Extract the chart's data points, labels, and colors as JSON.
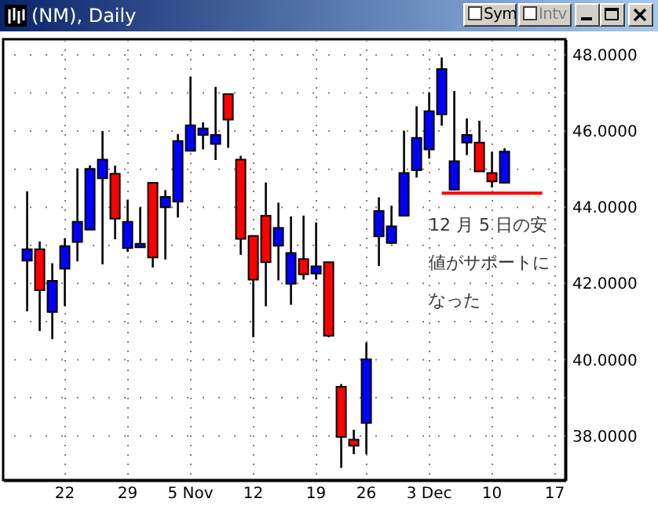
{
  "chart_data": {
    "type": "candlestick",
    "title": "(NM), Daily",
    "categories": [
      null,
      null,
      null,
      "22",
      null,
      null,
      null,
      null,
      "29",
      null,
      null,
      null,
      null,
      "5\nNov",
      null,
      null,
      null,
      null,
      "12",
      null,
      null,
      null,
      null,
      "19",
      null,
      null,
      null,
      "26",
      null,
      null,
      null,
      null,
      "3\nDec",
      null,
      null,
      null,
      null,
      "10",
      null,
      null,
      null,
      null,
      "17"
    ],
    "ohlc": [
      [
        42.6,
        44.42,
        41.27,
        42.9
      ],
      [
        42.9,
        43.1,
        40.75,
        41.82
      ],
      [
        41.25,
        42.53,
        40.54,
        42.07
      ],
      [
        42.39,
        43.18,
        41.4,
        42.98
      ],
      [
        43.09,
        45.02,
        42.58,
        43.62
      ],
      [
        43.41,
        45.1,
        43.41,
        45.01
      ],
      [
        44.76,
        46.0,
        42.5,
        45.25
      ],
      [
        44.88,
        45.09,
        43.16,
        43.7
      ],
      [
        42.93,
        44.2,
        42.83,
        43.62
      ],
      [
        42.95,
        44.0,
        42.95,
        43.04
      ],
      [
        44.64,
        44.64,
        42.42,
        42.68
      ],
      [
        44.0,
        44.45,
        42.63,
        44.27
      ],
      [
        44.15,
        45.92,
        43.73,
        45.74
      ],
      [
        45.48,
        47.43,
        45.48,
        46.15
      ],
      [
        45.9,
        46.23,
        45.52,
        46.07
      ],
      [
        45.66,
        47.16,
        45.24,
        45.9
      ],
      [
        46.97,
        46.97,
        45.56,
        46.3
      ],
      [
        45.25,
        45.35,
        42.75,
        43.17
      ],
      [
        43.25,
        43.25,
        40.59,
        42.1
      ],
      [
        43.78,
        44.65,
        41.4,
        42.56
      ],
      [
        42.99,
        44.12,
        42.08,
        43.46
      ],
      [
        41.99,
        43.76,
        41.44,
        42.8
      ],
      [
        42.64,
        43.78,
        42.1,
        42.24
      ],
      [
        42.26,
        43.6,
        42.1,
        42.45
      ],
      [
        42.56,
        42.56,
        40.59,
        40.63
      ],
      [
        39.29,
        39.36,
        37.16,
        37.97
      ],
      [
        37.9,
        38.16,
        37.52,
        37.74
      ],
      [
        38.34,
        40.45,
        37.52,
        40.01
      ],
      [
        43.24,
        44.26,
        42.46,
        43.9
      ],
      [
        43.06,
        44.04,
        43.03,
        43.5
      ],
      [
        43.78,
        46.01,
        43.78,
        44.9
      ],
      [
        44.97,
        46.65,
        44.78,
        45.82
      ],
      [
        45.52,
        47.02,
        45.28,
        46.52
      ],
      [
        46.44,
        47.93,
        46.14,
        47.63
      ],
      [
        44.46,
        47.05,
        44.46,
        45.21
      ],
      [
        45.7,
        46.33,
        45.37,
        45.9
      ],
      [
        45.7,
        46.27,
        44.94,
        44.94
      ],
      [
        44.9,
        45.46,
        44.52,
        44.68
      ],
      [
        44.64,
        45.55,
        44.64,
        45.46
      ],
      null,
      null,
      null,
      null
    ],
    "colors": [
      "#0000ff",
      "#ff0000",
      "#0000ff",
      "#0000ff",
      "#0000ff",
      "#0000ff",
      "#0000ff",
      "#ff0000",
      "#0000ff",
      "#0000ff",
      "#ff0000",
      "#0000ff",
      "#0000ff",
      "#0000ff",
      "#0000ff",
      "#0000ff",
      "#ff0000",
      "#ff0000",
      "#ff0000",
      "#ff0000",
      "#0000ff",
      "#0000ff",
      "#ff0000",
      "#0000ff",
      "#ff0000",
      "#ff0000",
      "#ff0000",
      "#0000ff",
      "#0000ff",
      "#0000ff",
      "#0000ff",
      "#0000ff",
      "#0000ff",
      "#0000ff",
      "#0000ff",
      "#0000ff",
      "#ff0000",
      "#ff0000",
      "#0000ff",
      null,
      null,
      null,
      null
    ],
    "series": [
      {
        "type": "line",
        "color": "#ff0000",
        "values": [
          null,
          null,
          null,
          null,
          null,
          null,
          null,
          null,
          null,
          null,
          null,
          null,
          null,
          null,
          null,
          null,
          null,
          null,
          null,
          null,
          null,
          null,
          null,
          null,
          null,
          null,
          null,
          null,
          null,
          null,
          null,
          null,
          null,
          44.37,
          44.37,
          44.37,
          44.37,
          44.37,
          44.37,
          44.37,
          44.37,
          44.37,
          null
        ]
      }
    ],
    "ylim": [
      36.84,
      48.41
    ],
    "yticks": [
      {
        "value": 38,
        "label": "38.0000"
      },
      {
        "value": 39,
        "label": null
      },
      {
        "value": 40,
        "label": "40.0000"
      },
      {
        "value": 41,
        "label": null
      },
      {
        "value": 42,
        "label": "42.0000"
      },
      {
        "value": 43,
        "label": null
      },
      {
        "value": 44,
        "label": "44.0000"
      },
      {
        "value": 45,
        "label": null
      },
      {
        "value": 46,
        "label": "46.0000"
      },
      {
        "value": 47,
        "label": null
      },
      {
        "value": 48,
        "label": "48.0000"
      }
    ],
    "grid": true,
    "annotations": [
      "12 月 5 日の安値がサポートになった",
      "Sym",
      "Intv"
    ]
  }
}
